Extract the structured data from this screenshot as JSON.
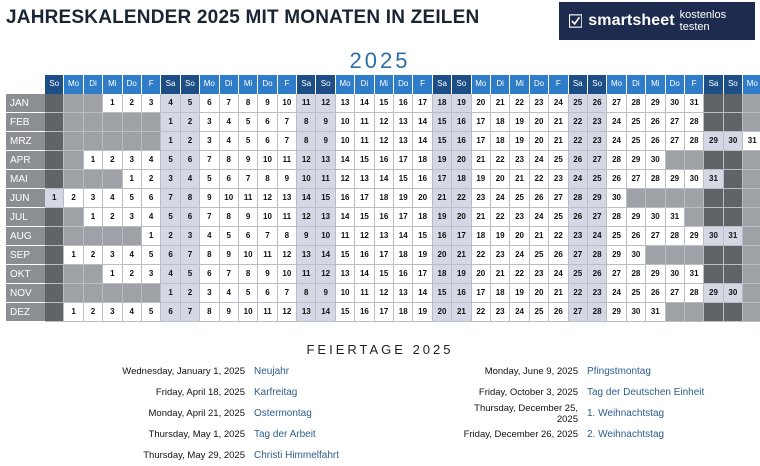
{
  "title": "JAHRESKALENDER 2025 MIT MONATEN IN ZEILEN",
  "brand": {
    "name": "smartsheet",
    "cta": "kostenlos testen"
  },
  "year": "2025",
  "weekdays": [
    "So",
    "Mo",
    "Di",
    "Mi",
    "Do",
    "F",
    "Sa"
  ],
  "colors": {
    "weekday_header": "#2f7dc9",
    "weekend_header": "#1d4f86",
    "weekend_cell": "#d3d8e4",
    "filler_light": "#9ea2a6",
    "filler_dark": "#606468",
    "brand_bg": "#1d2b4f",
    "accent": "#2f6fa8"
  },
  "months": [
    {
      "label": "JAN",
      "start": 3,
      "days": 31
    },
    {
      "label": "FEB",
      "start": 6,
      "days": 28
    },
    {
      "label": "MRZ",
      "start": 6,
      "days": 31
    },
    {
      "label": "APR",
      "start": 2,
      "days": 30
    },
    {
      "label": "MAI",
      "start": 4,
      "days": 31
    },
    {
      "label": "JUN",
      "start": 0,
      "days": 30
    },
    {
      "label": "JUL",
      "start": 2,
      "days": 31
    },
    {
      "label": "AUG",
      "start": 5,
      "days": 31
    },
    {
      "label": "SEP",
      "start": 1,
      "days": 30
    },
    {
      "label": "OKT",
      "start": 3,
      "days": 31
    },
    {
      "label": "NOV",
      "start": 6,
      "days": 30
    },
    {
      "label": "DEZ",
      "start": 1,
      "days": 31
    }
  ],
  "holidays_title": "FEIERTAGE 2025",
  "holidays_left": [
    {
      "date": "Wednesday, January 1, 2025",
      "name": "Neujahr"
    },
    {
      "date": "Friday, April 18, 2025",
      "name": "Karfreitag"
    },
    {
      "date": "Monday, April 21, 2025",
      "name": "Ostermontag"
    },
    {
      "date": "Thursday, May 1, 2025",
      "name": "Tag der Arbeit"
    },
    {
      "date": "Thursday, May 29, 2025",
      "name": "Christi Himmelfahrt"
    }
  ],
  "holidays_right": [
    {
      "date": "Monday, June 9, 2025",
      "name": "Pfingstmontag"
    },
    {
      "date": "Friday, October 3, 2025",
      "name": "Tag der Deutschen Einheit"
    },
    {
      "date": "Thursday, December 25, 2025",
      "name": "1. Weihnachtstag"
    },
    {
      "date": "Friday, December 26, 2025",
      "name": "2. Weihnachtstag"
    }
  ]
}
